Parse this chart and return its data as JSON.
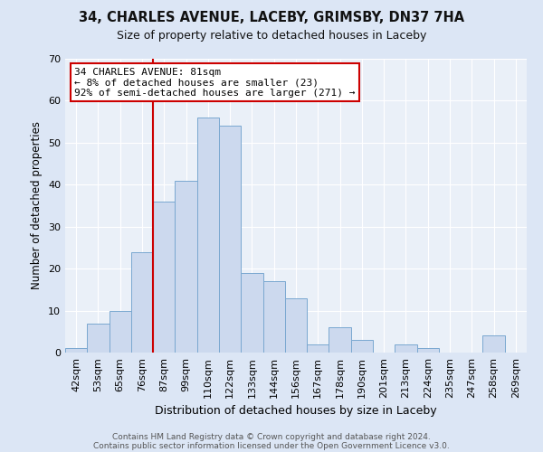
{
  "title1": "34, CHARLES AVENUE, LACEBY, GRIMSBY, DN37 7HA",
  "title2": "Size of property relative to detached houses in Laceby",
  "xlabel": "Distribution of detached houses by size in Laceby",
  "ylabel": "Number of detached properties",
  "bar_labels": [
    "42sqm",
    "53sqm",
    "65sqm",
    "76sqm",
    "87sqm",
    "99sqm",
    "110sqm",
    "122sqm",
    "133sqm",
    "144sqm",
    "156sqm",
    "167sqm",
    "178sqm",
    "190sqm",
    "201sqm",
    "213sqm",
    "224sqm",
    "235sqm",
    "247sqm",
    "258sqm",
    "269sqm"
  ],
  "bar_values": [
    1,
    7,
    10,
    24,
    36,
    41,
    56,
    54,
    19,
    17,
    13,
    2,
    6,
    3,
    0,
    2,
    1,
    0,
    0,
    4,
    0
  ],
  "bar_color": "#ccd9ee",
  "bar_edge_color": "#7aa8d0",
  "vline_color": "#cc0000",
  "annotation_title": "34 CHARLES AVENUE: 81sqm",
  "annotation_line1": "← 8% of detached houses are smaller (23)",
  "annotation_line2": "92% of semi-detached houses are larger (271) →",
  "annotation_box_color": "#cc0000",
  "annotation_bg": "#ffffff",
  "ylim": [
    0,
    70
  ],
  "yticks": [
    0,
    10,
    20,
    30,
    40,
    50,
    60,
    70
  ],
  "footer1": "Contains HM Land Registry data © Crown copyright and database right 2024.",
  "footer2": "Contains public sector information licensed under the Open Government Licence v3.0.",
  "bg_color": "#dce6f5",
  "plot_bg_color": "#eaf0f8",
  "grid_color": "#ffffff",
  "title1_fontsize": 10.5,
  "title2_fontsize": 9,
  "ylabel_fontsize": 8.5,
  "xlabel_fontsize": 9,
  "tick_fontsize": 8,
  "footer_fontsize": 6.5
}
